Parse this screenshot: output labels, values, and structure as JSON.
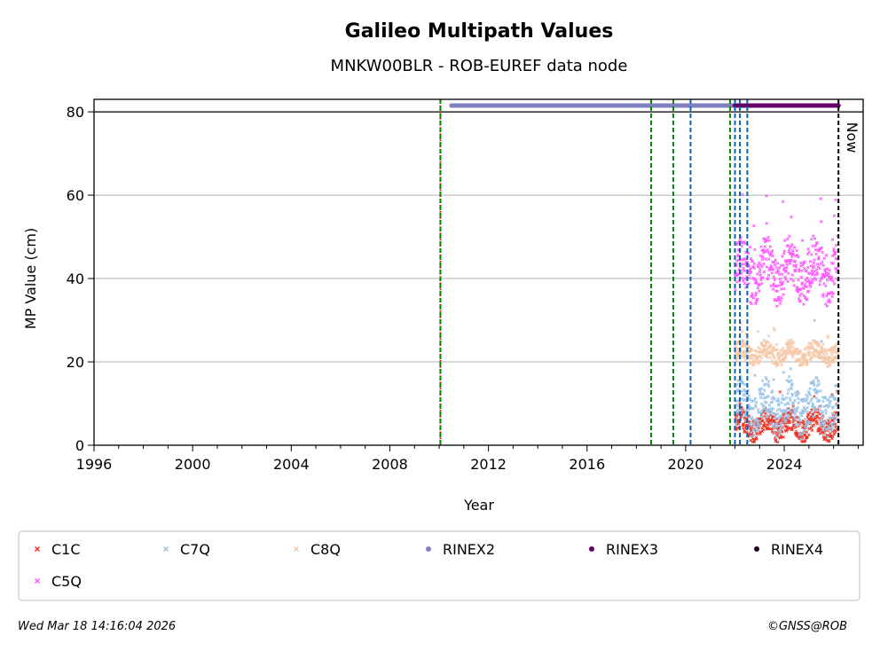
{
  "chart_data": {
    "type": "scatter",
    "title": "Galileo Multipath Values",
    "subtitle": "MNKW00BLR - ROB-EUREF data node",
    "xlabel": "Year",
    "ylabel": "MP Value (cm)",
    "xlim": [
      1996,
      2027.2
    ],
    "ylim": [
      0,
      83
    ],
    "x_ticks": [
      "1996",
      "2000",
      "2004",
      "2008",
      "2012",
      "2016",
      "2020",
      "2024"
    ],
    "y_ticks": [
      "0",
      "20",
      "40",
      "60",
      "80"
    ],
    "grid": "horizontal",
    "reference_line_y": 80,
    "now_label": "Now",
    "now_x": 2026.2,
    "series": [
      {
        "name": "C1C",
        "color": "#ee3322",
        "marker": "x",
        "x_range": [
          2022.0,
          2026.2
        ],
        "median": 5,
        "spread": 4
      },
      {
        "name": "C7Q",
        "color": "#99c2e6",
        "marker": "x",
        "x_range": [
          2022.0,
          2026.2
        ],
        "median": 9,
        "spread": 7
      },
      {
        "name": "C8Q",
        "color": "#f5c8a8",
        "marker": "x",
        "x_range": [
          2022.0,
          2026.2
        ],
        "median": 22,
        "spread": 3
      },
      {
        "name": "C5Q",
        "color": "#ff55ff",
        "marker": "x",
        "x_range": [
          2022.0,
          2026.2
        ],
        "median": 42,
        "spread": 8
      }
    ],
    "rinex_bars": [
      {
        "name": "RINEX2",
        "color": "#8080c0",
        "x_start": 2010.5,
        "x_end": 2022.0,
        "y": 81.5
      },
      {
        "name": "RINEX3",
        "color": "#660066",
        "x_start": 2022.0,
        "x_end": 2026.2,
        "y": 81.5
      },
      {
        "name": "RINEX4",
        "color": "#220022",
        "x_start": null,
        "x_end": null,
        "y": 81.5
      }
    ],
    "event_lines": [
      {
        "x": 2010.05,
        "color": "#cc0000",
        "style": "dotted"
      },
      {
        "x": 2010.05,
        "color": "#008800",
        "style": "dashed"
      },
      {
        "x": 2018.6,
        "color": "#008800",
        "style": "dashed"
      },
      {
        "x": 2019.5,
        "color": "#008800",
        "style": "dashed"
      },
      {
        "x": 2020.2,
        "color": "#1060b0",
        "style": "dashed"
      },
      {
        "x": 2021.8,
        "color": "#008800",
        "style": "dashed"
      },
      {
        "x": 2022.0,
        "color": "#1060b0",
        "style": "dashed"
      },
      {
        "x": 2022.2,
        "color": "#1060b0",
        "style": "dashed"
      },
      {
        "x": 2022.5,
        "color": "#1060b0",
        "style": "dashed"
      },
      {
        "x": 2026.2,
        "color": "#000000",
        "style": "dashed"
      }
    ],
    "legend": {
      "placement": "bottom",
      "entries": [
        {
          "label": "C1C",
          "color": "#ee3322",
          "marker": "x"
        },
        {
          "label": "C7Q",
          "color": "#99c2e6",
          "marker": "x"
        },
        {
          "label": "C8Q",
          "color": "#f5c8a8",
          "marker": "x"
        },
        {
          "label": "RINEX2",
          "color": "#8080c0",
          "marker": "dot"
        },
        {
          "label": "RINEX3",
          "color": "#660066",
          "marker": "dot"
        },
        {
          "label": "RINEX4",
          "color": "#220022",
          "marker": "dot"
        },
        {
          "label": "C5Q",
          "color": "#ff55ff",
          "marker": "x"
        }
      ]
    }
  },
  "footer": {
    "timestamp": "Wed Mar 18 14:16:04 2026",
    "credit": "©GNSS@ROB"
  }
}
